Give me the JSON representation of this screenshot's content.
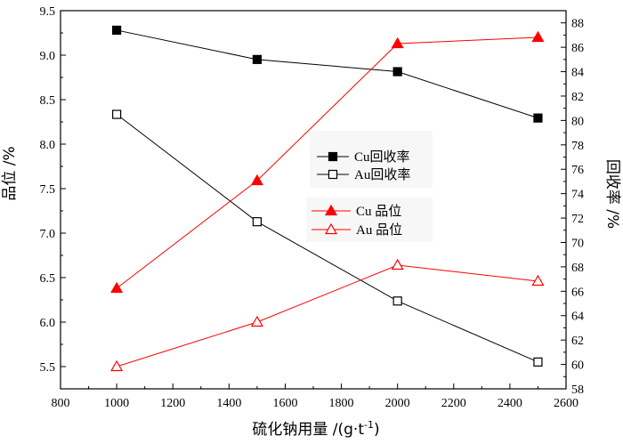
{
  "chart_data": {
    "type": "line",
    "title": "",
    "xlabel": "硫化钠用量 /(g·t",
    "xlabel_sup": "-1",
    "xlabel_close": ")",
    "ylabel_left": "品位 /%",
    "ylabel_right": "回收率 /%",
    "xlim": [
      800,
      2600
    ],
    "ylim_left": [
      5.25,
      9.5
    ],
    "ylim_right": [
      58,
      89
    ],
    "x_ticks": [
      800,
      1000,
      1200,
      1400,
      1600,
      1800,
      2000,
      2200,
      2400,
      2600
    ],
    "y_left_ticks": [
      "5.5",
      "6.0",
      "6.5",
      "7.0",
      "7.5",
      "8.0",
      "8.5",
      "9.0",
      "9.5"
    ],
    "y_right_ticks": [
      58,
      60,
      62,
      64,
      66,
      68,
      70,
      72,
      74,
      76,
      78,
      80,
      82,
      84,
      86,
      88
    ],
    "grid": false,
    "x": [
      1000,
      1500,
      2000,
      2500
    ],
    "series": [
      {
        "name": "Cu回收率",
        "axis": "right",
        "color": "#000000",
        "marker": "square-filled",
        "values": [
          87.4,
          85.0,
          84.0,
          80.2
        ]
      },
      {
        "name": "Au回收率",
        "axis": "right",
        "color": "#000000",
        "marker": "square-open",
        "values": [
          80.5,
          71.7,
          65.2,
          60.2
        ]
      },
      {
        "name": "Cu 品位",
        "axis": "left",
        "color": "#ff0000",
        "marker": "triangle-filled",
        "values": [
          6.38,
          7.59,
          9.13,
          9.2
        ]
      },
      {
        "name": "Au 品位",
        "axis": "left",
        "color": "#ff0000",
        "marker": "triangle-open",
        "values": [
          5.5,
          6.0,
          6.64,
          6.46
        ]
      }
    ]
  }
}
